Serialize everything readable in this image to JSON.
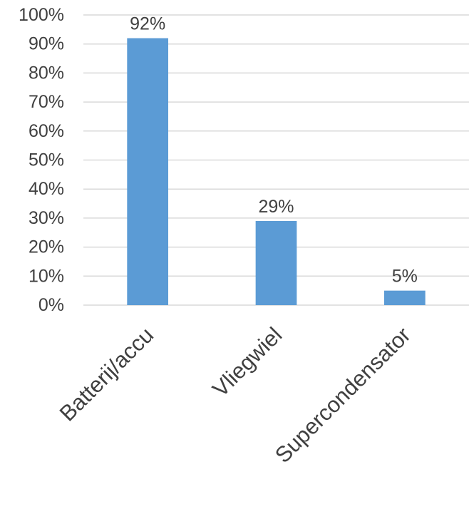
{
  "chart_data": {
    "type": "bar",
    "categories": [
      "Batterij/accu",
      "Vliegwiel",
      "Supercondensator"
    ],
    "values": [
      0.92,
      0.29,
      0.05
    ],
    "data_labels": [
      "92%",
      "29%",
      "5%"
    ],
    "ylim": [
      0,
      1
    ],
    "y_ticks": [
      0,
      0.1,
      0.2,
      0.3,
      0.4,
      0.5,
      0.6,
      0.7,
      0.8,
      0.9,
      1.0
    ],
    "y_tick_labels": [
      "0%",
      "10%",
      "20%",
      "30%",
      "40%",
      "50%",
      "60%",
      "70%",
      "80%",
      "90%",
      "100%"
    ],
    "grid": true,
    "legend": "none",
    "colors": {
      "bar": "#5b9bd5",
      "grid": "#d9d9d9",
      "text": "#404040"
    }
  }
}
